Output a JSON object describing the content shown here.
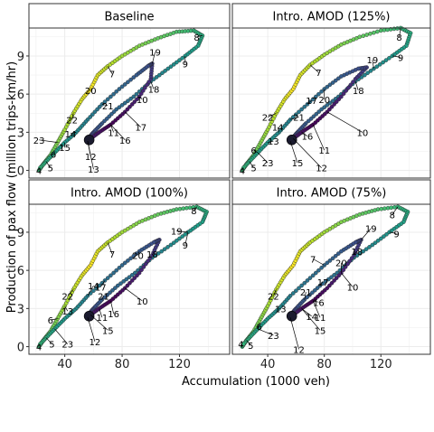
{
  "chart_data": {
    "type": "scatter",
    "xlabel": "Accumulation (1000 veh)",
    "ylabel": "Production of pax flow (million trips-km/hr)",
    "xlim": [
      15,
      155
    ],
    "ylim": [
      -0.6,
      11.2
    ],
    "x_ticks": [
      40,
      80,
      120
    ],
    "y_ticks": [
      0,
      3,
      6,
      9
    ],
    "grid": true,
    "color_scale": "viridis by hour of day (1 = purple, 8 = yellow)",
    "panels": [
      {
        "title": "Baseline",
        "path": [
          [
            22,
            0.0
          ],
          [
            25,
            0.5
          ],
          [
            30,
            1.2
          ],
          [
            35,
            2.2
          ],
          [
            40,
            3.2
          ],
          [
            46,
            4.5
          ],
          [
            52,
            5.6
          ],
          [
            58,
            6.4
          ],
          [
            63,
            7.5
          ],
          [
            70,
            8.2
          ],
          [
            80,
            9.0
          ],
          [
            92,
            9.8
          ],
          [
            105,
            10.4
          ],
          [
            118,
            10.9
          ],
          [
            130,
            11.0
          ],
          [
            136,
            10.6
          ],
          [
            133,
            9.8
          ],
          [
            124,
            9.0
          ],
          [
            112,
            8.0
          ],
          [
            100,
            7.0
          ],
          [
            88,
            5.8
          ],
          [
            76,
            4.8
          ],
          [
            66,
            3.7
          ],
          [
            60,
            3.0
          ],
          [
            57,
            2.6
          ],
          [
            56,
            2.3
          ],
          [
            58,
            2.5
          ],
          [
            64,
            3.0
          ],
          [
            72,
            3.6
          ],
          [
            82,
            4.6
          ],
          [
            92,
            5.8
          ],
          [
            100,
            7.2
          ],
          [
            101,
            8.4
          ],
          [
            98,
            8.2
          ],
          [
            90,
            7.5
          ],
          [
            78,
            6.4
          ],
          [
            66,
            5.2
          ],
          [
            56,
            4.0
          ],
          [
            48,
            3.0
          ],
          [
            40,
            2.2
          ],
          [
            33,
            1.4
          ],
          [
            27,
            0.7
          ],
          [
            22,
            0.1
          ]
        ],
        "labels": [
          {
            "h": "4",
            "x": 22,
            "y": 0.0
          },
          {
            "h": "5",
            "x": 30,
            "y": 0.2
          },
          {
            "h": "6",
            "x": 32,
            "y": 1.3
          },
          {
            "h": "7",
            "x": 73,
            "y": 7.6
          },
          {
            "h": "8",
            "x": 132,
            "y": 10.5
          },
          {
            "h": "9",
            "x": 124,
            "y": 8.4
          },
          {
            "h": "10",
            "x": 94,
            "y": 5.6
          },
          {
            "h": "11",
            "x": 74,
            "y": 3.0
          },
          {
            "h": "12",
            "x": 58,
            "y": 1.1
          },
          {
            "h": "13",
            "x": 60,
            "y": 0.1
          },
          {
            "h": "14",
            "x": 44,
            "y": 2.9
          },
          {
            "h": "15",
            "x": 40,
            "y": 1.8
          },
          {
            "h": "16",
            "x": 82,
            "y": 2.4
          },
          {
            "h": "17",
            "x": 93,
            "y": 3.4
          },
          {
            "h": "18",
            "x": 102,
            "y": 6.4
          },
          {
            "h": "19",
            "x": 103,
            "y": 9.3
          },
          {
            "h": "20",
            "x": 58,
            "y": 6.3
          },
          {
            "h": "21",
            "x": 70,
            "y": 5.1
          },
          {
            "h": "22",
            "x": 45,
            "y": 4.0
          },
          {
            "h": "23",
            "x": 22,
            "y": 2.4
          }
        ]
      },
      {
        "title": "Intro. AMOD (125%)",
        "path": [
          [
            22,
            0.0
          ],
          [
            25,
            0.5
          ],
          [
            30,
            1.2
          ],
          [
            35,
            2.2
          ],
          [
            40,
            3.2
          ],
          [
            46,
            4.5
          ],
          [
            52,
            5.6
          ],
          [
            58,
            6.4
          ],
          [
            63,
            7.5
          ],
          [
            70,
            8.3
          ],
          [
            80,
            9.1
          ],
          [
            92,
            9.9
          ],
          [
            105,
            10.5
          ],
          [
            120,
            11.0
          ],
          [
            134,
            11.2
          ],
          [
            141,
            10.8
          ],
          [
            138,
            9.8
          ],
          [
            128,
            9.0
          ],
          [
            115,
            8.0
          ],
          [
            102,
            7.0
          ],
          [
            90,
            5.8
          ],
          [
            78,
            4.8
          ],
          [
            67,
            3.7
          ],
          [
            61,
            3.0
          ],
          [
            58,
            2.6
          ],
          [
            56,
            2.3
          ],
          [
            58,
            2.5
          ],
          [
            64,
            3.0
          ],
          [
            72,
            3.6
          ],
          [
            82,
            4.6
          ],
          [
            92,
            5.8
          ],
          [
            102,
            7.2
          ],
          [
            110,
            8.1
          ],
          [
            104,
            8.0
          ],
          [
            92,
            7.4
          ],
          [
            80,
            6.4
          ],
          [
            68,
            5.2
          ],
          [
            56,
            4.0
          ],
          [
            48,
            3.0
          ],
          [
            40,
            2.2
          ],
          [
            33,
            1.4
          ],
          [
            27,
            0.7
          ],
          [
            22,
            0.1
          ]
        ],
        "labels": [
          {
            "h": "4",
            "x": 22,
            "y": 0.0
          },
          {
            "h": "5",
            "x": 30,
            "y": 0.2
          },
          {
            "h": "6",
            "x": 30,
            "y": 1.6
          },
          {
            "h": "7",
            "x": 76,
            "y": 7.7
          },
          {
            "h": "8",
            "x": 133,
            "y": 10.5
          },
          {
            "h": "9",
            "x": 134,
            "y": 8.9
          },
          {
            "h": "10",
            "x": 107,
            "y": 3.0
          },
          {
            "h": "11",
            "x": 80,
            "y": 1.6
          },
          {
            "h": "12",
            "x": 78,
            "y": 0.2
          },
          {
            "h": "13",
            "x": 44,
            "y": 2.3
          },
          {
            "h": "14",
            "x": 47,
            "y": 3.4
          },
          {
            "h": "15",
            "x": 61,
            "y": 0.6
          },
          {
            "h": "16",
            "x": 68,
            "y": 2.7
          },
          {
            "h": "17",
            "x": 71,
            "y": 5.5
          },
          {
            "h": "18",
            "x": 104,
            "y": 6.3
          },
          {
            "h": "19",
            "x": 114,
            "y": 8.7
          },
          {
            "h": "20",
            "x": 80,
            "y": 5.6
          },
          {
            "h": "21",
            "x": 62,
            "y": 4.2
          },
          {
            "h": "22",
            "x": 40,
            "y": 4.2
          },
          {
            "h": "23",
            "x": 40,
            "y": 0.6
          }
        ]
      },
      {
        "title": "Intro. AMOD (100%)",
        "path": [
          [
            22,
            0.0
          ],
          [
            25,
            0.5
          ],
          [
            30,
            1.2
          ],
          [
            35,
            2.2
          ],
          [
            40,
            3.2
          ],
          [
            46,
            4.5
          ],
          [
            52,
            5.6
          ],
          [
            58,
            6.4
          ],
          [
            63,
            7.5
          ],
          [
            70,
            8.2
          ],
          [
            80,
            9.0
          ],
          [
            92,
            9.8
          ],
          [
            105,
            10.4
          ],
          [
            118,
            10.8
          ],
          [
            132,
            11.0
          ],
          [
            139,
            10.6
          ],
          [
            136,
            9.8
          ],
          [
            126,
            9.0
          ],
          [
            114,
            8.0
          ],
          [
            101,
            7.0
          ],
          [
            89,
            5.8
          ],
          [
            77,
            4.8
          ],
          [
            66,
            3.7
          ],
          [
            60,
            3.0
          ],
          [
            57,
            2.6
          ],
          [
            56,
            2.3
          ],
          [
            58,
            2.5
          ],
          [
            64,
            3.0
          ],
          [
            72,
            3.6
          ],
          [
            82,
            4.6
          ],
          [
            92,
            5.8
          ],
          [
            101,
            7.2
          ],
          [
            106,
            8.4
          ],
          [
            102,
            8.2
          ],
          [
            92,
            7.5
          ],
          [
            80,
            6.4
          ],
          [
            68,
            5.2
          ],
          [
            56,
            4.0
          ],
          [
            48,
            3.0
          ],
          [
            40,
            2.2
          ],
          [
            33,
            1.4
          ],
          [
            27,
            0.7
          ],
          [
            22,
            0.1
          ]
        ],
        "labels": [
          {
            "h": "4",
            "x": 22,
            "y": 0.0
          },
          {
            "h": "5",
            "x": 31,
            "y": 0.2
          },
          {
            "h": "6",
            "x": 30,
            "y": 2.1
          },
          {
            "h": "7",
            "x": 73,
            "y": 7.3
          },
          {
            "h": "8",
            "x": 130,
            "y": 10.7
          },
          {
            "h": "9",
            "x": 124,
            "y": 8.0
          },
          {
            "h": "10",
            "x": 94,
            "y": 3.6
          },
          {
            "h": "11",
            "x": 66,
            "y": 2.3
          },
          {
            "h": "12",
            "x": 61,
            "y": 0.4
          },
          {
            "h": "13",
            "x": 42,
            "y": 2.8
          },
          {
            "h": "14",
            "x": 60,
            "y": 4.8
          },
          {
            "h": "15",
            "x": 70,
            "y": 1.3
          },
          {
            "h": "16",
            "x": 74,
            "y": 2.6
          },
          {
            "h": "17",
            "x": 65,
            "y": 4.7
          },
          {
            "h": "18",
            "x": 101,
            "y": 7.3
          },
          {
            "h": "19",
            "x": 118,
            "y": 9.1
          },
          {
            "h": "20",
            "x": 91,
            "y": 7.2
          },
          {
            "h": "21",
            "x": 67,
            "y": 4.0
          },
          {
            "h": "22",
            "x": 42,
            "y": 4.0
          },
          {
            "h": "23",
            "x": 42,
            "y": 0.2
          }
        ]
      },
      {
        "title": "Intro. AMOD (75%)",
        "path": [
          [
            22,
            0.0
          ],
          [
            25,
            0.5
          ],
          [
            30,
            1.2
          ],
          [
            35,
            2.2
          ],
          [
            40,
            3.2
          ],
          [
            46,
            4.5
          ],
          [
            52,
            5.6
          ],
          [
            58,
            6.4
          ],
          [
            63,
            7.5
          ],
          [
            70,
            8.2
          ],
          [
            80,
            9.0
          ],
          [
            92,
            9.8
          ],
          [
            105,
            10.4
          ],
          [
            118,
            10.8
          ],
          [
            132,
            11.0
          ],
          [
            139,
            10.6
          ],
          [
            136,
            9.8
          ],
          [
            126,
            9.0
          ],
          [
            114,
            8.0
          ],
          [
            101,
            7.0
          ],
          [
            89,
            5.8
          ],
          [
            77,
            4.8
          ],
          [
            66,
            3.7
          ],
          [
            60,
            3.0
          ],
          [
            57,
            2.6
          ],
          [
            56,
            2.3
          ],
          [
            58,
            2.5
          ],
          [
            64,
            3.0
          ],
          [
            72,
            3.6
          ],
          [
            82,
            4.6
          ],
          [
            92,
            5.8
          ],
          [
            101,
            7.2
          ],
          [
            106,
            8.4
          ],
          [
            102,
            8.2
          ],
          [
            92,
            7.5
          ],
          [
            80,
            6.4
          ],
          [
            68,
            5.2
          ],
          [
            56,
            4.0
          ],
          [
            48,
            3.0
          ],
          [
            40,
            2.2
          ],
          [
            33,
            1.4
          ],
          [
            27,
            0.7
          ],
          [
            22,
            0.1
          ]
        ],
        "labels": [
          {
            "h": "4",
            "x": 21,
            "y": 0.2
          },
          {
            "h": "5",
            "x": 28,
            "y": 0.1
          },
          {
            "h": "6",
            "x": 34,
            "y": 1.6
          },
          {
            "h": "7",
            "x": 72,
            "y": 6.9
          },
          {
            "h": "8",
            "x": 128,
            "y": 10.4
          },
          {
            "h": "9",
            "x": 131,
            "y": 8.9
          },
          {
            "h": "10",
            "x": 100,
            "y": 4.7
          },
          {
            "h": "11",
            "x": 77,
            "y": 2.3
          },
          {
            "h": "12",
            "x": 62,
            "y": -0.2
          },
          {
            "h": "13",
            "x": 49,
            "y": 3.0
          },
          {
            "h": "14",
            "x": 71,
            "y": 2.4
          },
          {
            "h": "15",
            "x": 77,
            "y": 1.3
          },
          {
            "h": "16",
            "x": 76,
            "y": 3.5
          },
          {
            "h": "17",
            "x": 79,
            "y": 5.1
          },
          {
            "h": "18",
            "x": 103,
            "y": 7.5
          },
          {
            "h": "19",
            "x": 113,
            "y": 9.3
          },
          {
            "h": "20",
            "x": 92,
            "y": 6.6
          },
          {
            "h": "21",
            "x": 67,
            "y": 4.3
          },
          {
            "h": "22",
            "x": 44,
            "y": 4.0
          },
          {
            "h": "23",
            "x": 44,
            "y": 0.9
          }
        ]
      }
    ]
  }
}
